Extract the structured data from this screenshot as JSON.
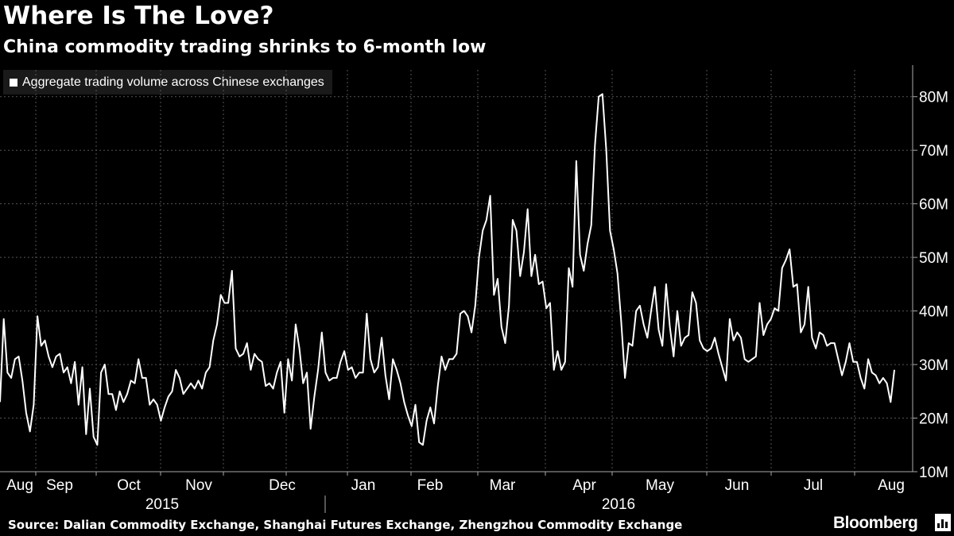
{
  "title": "Where Is The Love?",
  "subtitle": "China commodity trading shrinks to 6-month low",
  "source": "Source: Dalian Commodity Exchange, Shanghai Futures Exchange, Zhengzhou Commodity Exchange",
  "brand": "Bloomberg",
  "colors": {
    "background": "#000000",
    "line": "#ffffff",
    "grid": "#555555"
  },
  "chart_data": {
    "type": "line",
    "title": "Where Is The Love?",
    "subtitle": "China commodity trading shrinks to 6-month low",
    "legend_position": "top-left",
    "grid": true,
    "ylim": [
      10000000,
      85000000
    ],
    "y_ticks": [
      10000000,
      20000000,
      30000000,
      40000000,
      50000000,
      60000000,
      70000000,
      80000000
    ],
    "y_tick_labels": [
      "10M",
      "20M",
      "30M",
      "40M",
      "50M",
      "60M",
      "70M",
      "80M"
    ],
    "x_tick_labels": [
      "Aug",
      "Sep",
      "Oct",
      "Nov",
      "Dec",
      "Jan",
      "Feb",
      "Mar",
      "Apr",
      "May",
      "Jun",
      "Jul",
      "Aug"
    ],
    "x_year_labels": [
      "2015",
      "2016"
    ],
    "series": [
      {
        "name": "Aggregate trading volume across Chinese exchanges",
        "values": [
          23.0,
          38.5,
          28.5,
          27.5,
          31.0,
          31.5,
          27.0,
          21.0,
          17.5,
          22.5,
          39.0,
          33.5,
          34.5,
          31.5,
          29.5,
          31.5,
          32.0,
          28.5,
          29.5,
          26.5,
          30.5,
          22.5,
          29.5,
          17.0,
          25.5,
          16.5,
          15.0,
          28.5,
          30.0,
          24.5,
          24.5,
          21.5,
          25.0,
          23.0,
          24.5,
          27.0,
          26.5,
          31.0,
          27.5,
          27.5,
          22.5,
          23.5,
          22.5,
          19.5,
          22.0,
          24.0,
          25.0,
          29.0,
          27.5,
          24.5,
          25.5,
          26.5,
          25.5,
          27.0,
          25.5,
          28.5,
          29.5,
          34.5,
          37.5,
          43.0,
          41.5,
          41.5,
          47.5,
          33.0,
          31.5,
          32.0,
          34.0,
          29.0,
          32.0,
          31.0,
          30.5,
          26.0,
          26.5,
          25.5,
          28.5,
          30.5,
          21.0,
          31.0,
          27.0,
          37.5,
          33.0,
          26.5,
          28.5,
          18.0,
          24.0,
          29.0,
          36.0,
          28.5,
          27.0,
          27.5,
          27.5,
          30.5,
          32.5,
          29.0,
          29.5,
          27.5,
          28.5,
          28.5,
          39.5,
          31.0,
          28.5,
          29.5,
          35.0,
          28.0,
          23.5,
          31.0,
          29.0,
          26.5,
          23.0,
          20.5,
          18.5,
          22.5,
          15.5,
          15.0,
          19.5,
          22.0,
          19.0,
          26.0,
          31.5,
          29.0,
          31.0,
          31.0,
          32.0,
          39.5,
          40.0,
          39.0,
          36.0,
          41.0,
          50.0,
          55.0,
          57.0,
          61.5,
          43.0,
          46.0,
          37.0,
          34.0,
          41.0,
          57.0,
          55.0,
          46.5,
          51.0,
          59.0,
          46.5,
          50.5,
          45.0,
          45.5,
          40.5,
          41.5,
          29.0,
          32.5,
          29.0,
          30.5,
          48.0,
          44.5,
          68.0,
          50.5,
          47.5,
          52.5,
          56.0,
          71.0,
          80.0,
          80.5,
          70.0,
          55.0,
          51.5,
          47.0,
          38.0,
          27.5,
          34.0,
          33.5,
          40.0,
          41.0,
          37.5,
          35.0,
          40.0,
          44.5,
          36.5,
          33.5,
          45.0,
          37.0,
          31.5,
          40.0,
          33.5,
          35.0,
          35.5,
          43.5,
          41.5,
          34.5,
          33.0,
          32.5,
          33.0,
          35.0,
          32.0,
          29.5,
          27.0,
          38.5,
          34.5,
          36.0,
          35.0,
          31.0,
          30.5,
          31.0,
          31.5,
          41.5,
          35.5,
          37.5,
          38.5,
          40.5,
          40.0,
          48.0,
          49.5,
          51.5,
          44.5,
          45.0,
          36.0,
          37.5,
          44.5,
          35.0,
          33.0,
          36.0,
          35.5,
          33.5,
          34.0,
          34.0,
          31.0,
          28.0,
          30.5,
          34.0,
          30.5,
          30.5,
          27.5,
          25.5,
          31.0,
          28.5,
          28.0,
          26.5,
          27.5,
          26.5,
          23.0,
          29.0
        ]
      }
    ]
  }
}
